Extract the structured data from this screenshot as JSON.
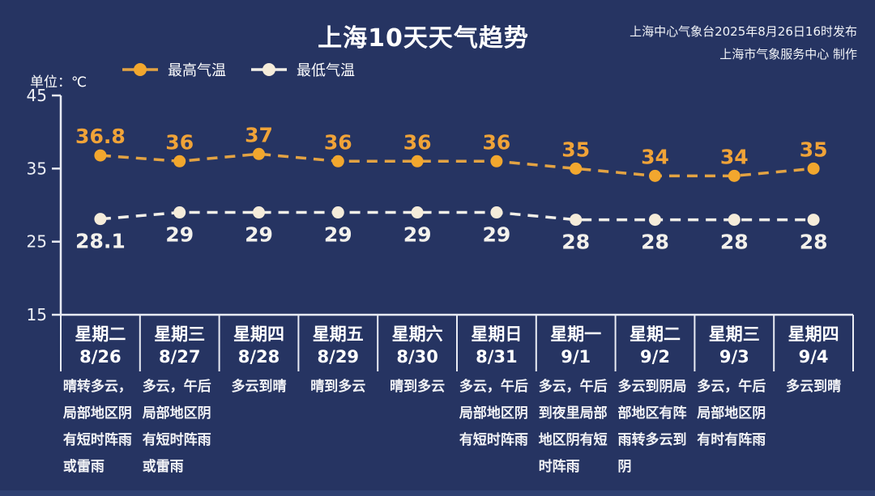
{
  "header": {
    "title": "上海10天天气趋势",
    "issued_line1": "上海中心气象台2025年8月26日16时发布",
    "issued_line2": "上海市气象服务中心 制作",
    "unit_label": "单位：℃"
  },
  "colors": {
    "background": "#263462",
    "high_accent": "#F2A72E",
    "low_accent": "#F5ECDA",
    "text": "#FFFFFF",
    "footer_strip": "#2E4071"
  },
  "chart_data": {
    "type": "line",
    "title": "上海10天天气趋势",
    "ylabel": "单位：℃",
    "ylim": [
      15,
      45
    ],
    "yticks": [
      45,
      35,
      25,
      15
    ],
    "grid": false,
    "legend_position": "top-left",
    "categories": [
      "8/26",
      "8/27",
      "8/28",
      "8/29",
      "8/30",
      "8/31",
      "9/1",
      "9/2",
      "9/3",
      "9/4"
    ],
    "weekdays": [
      "星期二",
      "星期三",
      "星期四",
      "星期五",
      "星期六",
      "星期日",
      "星期一",
      "星期二",
      "星期三",
      "星期四"
    ],
    "descriptions": [
      "晴转多云，局部地区阴有短时阵雨或雷雨",
      "多云，午后局部地区阴有短时阵雨或雷雨",
      "多云到晴",
      "晴到多云",
      "晴到多云",
      "多云，午后局部地区阴有短时阵雨",
      "多云，午后到夜里局部地区阴有短时阵雨",
      "多云到阴局部地区有阵雨转多云到阴",
      "多云，午后局部地区阴有时有阵雨",
      "多云到晴"
    ],
    "series": [
      {
        "name": "最高气温",
        "values": [
          36.8,
          36,
          37,
          36,
          36,
          36,
          35,
          34,
          34,
          35
        ],
        "point_color": "#F2A72E",
        "line_color": "#E3A343",
        "label_color": "#F0A338",
        "label_position": "above"
      },
      {
        "name": "最低气温",
        "values": [
          28.1,
          29,
          29,
          29,
          29,
          29,
          28,
          28,
          28,
          28
        ],
        "point_color": "#F5ECDA",
        "line_color": "#F2EFE8",
        "label_color": "#F3F1EC",
        "label_position": "below"
      }
    ]
  }
}
